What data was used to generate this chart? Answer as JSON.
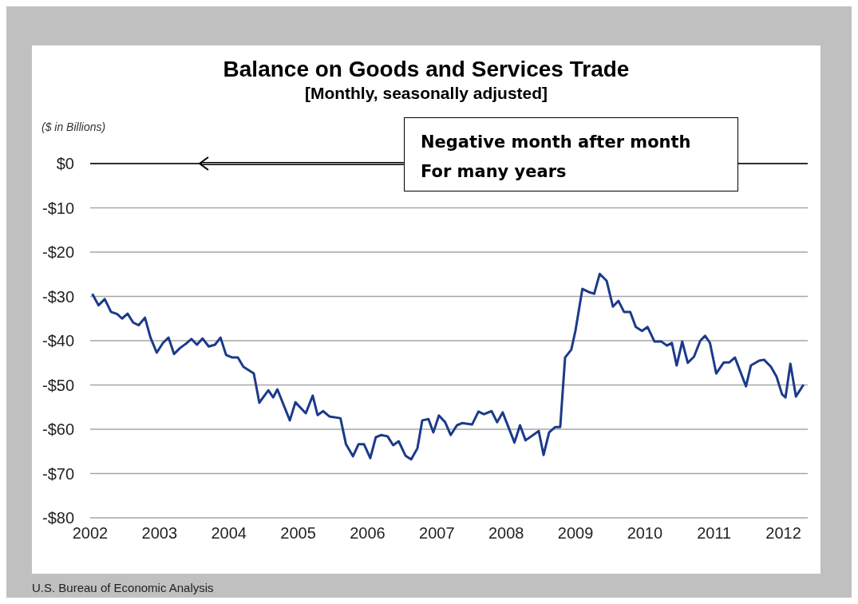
{
  "chart_data": {
    "type": "line",
    "title": "Balance on Goods and Services Trade",
    "subtitle": "[Monthly, seasonally adjusted]",
    "ylabel": "($ in Billions)",
    "annotations": [
      "Negative month after month\nFor many years",
      "U.S. Bureau of Economic Analysis"
    ],
    "x": [
      2002.03,
      2002.12,
      2002.21,
      2002.3,
      2002.39,
      2002.46,
      2002.54,
      2002.62,
      2002.7,
      2002.79,
      2002.87,
      2002.96,
      2003.05,
      2003.13,
      2003.21,
      2003.3,
      2003.38,
      2003.46,
      2003.54,
      2003.62,
      2003.71,
      2003.8,
      2003.88,
      2003.96,
      2004.05,
      2004.13,
      2004.21,
      2004.36,
      2004.44,
      2004.57,
      2004.64,
      2004.7,
      2004.88,
      2004.96,
      2005.11,
      2005.21,
      2005.28,
      2005.36,
      2005.45,
      2005.61,
      2005.69,
      2005.79,
      2005.87,
      2005.95,
      2006.04,
      2006.12,
      2006.2,
      2006.29,
      2006.37,
      2006.45,
      2006.55,
      2006.63,
      2006.72,
      2006.79,
      2006.88,
      2006.95,
      2007.03,
      2007.12,
      2007.2,
      2007.29,
      2007.37,
      2007.51,
      2007.6,
      2007.68,
      2007.79,
      2007.87,
      2007.95,
      2008.12,
      2008.2,
      2008.28,
      2008.47,
      2008.54,
      2008.62,
      2008.71,
      2008.78,
      2008.85,
      2008.94,
      2009.0,
      2009.1,
      2009.19,
      2009.27,
      2009.35,
      2009.45,
      2009.54,
      2009.62,
      2009.7,
      2009.79,
      2009.87,
      2009.96,
      2010.04,
      2010.14,
      2010.24,
      2010.32,
      2010.39,
      2010.46,
      2010.54,
      2010.62,
      2010.71,
      2010.8,
      2010.87,
      2010.94,
      2011.03,
      2011.14,
      2011.22,
      2011.3,
      2011.46,
      2011.53,
      2011.65,
      2011.72,
      2011.82,
      2011.9,
      2011.98,
      2012.03,
      2012.1,
      2012.18,
      2012.29
    ],
    "series": [
      {
        "color": "#1b3a8a",
        "values": [
          -29.4,
          -32,
          -30.6,
          -33.5,
          -34,
          -35,
          -33.9,
          -35.9,
          -36.5,
          -34.8,
          -39.3,
          -42.7,
          -40.5,
          -39.3,
          -43,
          -41.6,
          -40.7,
          -39.6,
          -40.9,
          -39.5,
          -41.3,
          -40.9,
          -39.3,
          -43.2,
          -43.8,
          -43.8,
          -45.9,
          -47.4,
          -54,
          -51.2,
          -52.8,
          -51,
          -58,
          -53.9,
          -56.4,
          -52.4,
          -56.8,
          -55.9,
          -57.1,
          -57.5,
          -63.4,
          -66.1,
          -63.4,
          -63.4,
          -66.5,
          -61.8,
          -61.3,
          -61.6,
          -63.6,
          -62.7,
          -66,
          -66.8,
          -64.3,
          -58,
          -57.7,
          -60.7,
          -56.9,
          -58.4,
          -61.3,
          -59.1,
          -58.6,
          -58.9,
          -56,
          -56.6,
          -55.9,
          -58.4,
          -56.2,
          -63,
          -59.1,
          -62.5,
          -60.4,
          -65.8,
          -60.7,
          -59.5,
          -59.5,
          -43.8,
          -42,
          -37.7,
          -28.3,
          -29,
          -29.4,
          -24.9,
          -26.5,
          -32.3,
          -31,
          -33.5,
          -33.5,
          -36.9,
          -37.8,
          -36.9,
          -40.2,
          -40.2,
          -41.1,
          -40.5,
          -45.6,
          -40.2,
          -45,
          -43.6,
          -40,
          -38.9,
          -40.5,
          -47.4,
          -44.9,
          -44.9,
          -43.8,
          -50.3,
          -45.6,
          -44.5,
          -44.3,
          -45.9,
          -48.1,
          -52.1,
          -52.8,
          -45.2,
          -52.6,
          -49.9
        ]
      }
    ],
    "xlim": [
      2002,
      2012.35
    ],
    "xticks": [
      2002,
      2003,
      2004,
      2005,
      2006,
      2007,
      2008,
      2009,
      2010,
      2011,
      2012
    ],
    "ylim": [
      -80,
      0
    ],
    "yticks": [
      {
        "value": -80,
        "label": "-$80"
      },
      {
        "value": -70,
        "label": "-$70"
      },
      {
        "value": -60,
        "label": "-$60"
      },
      {
        "value": -50,
        "label": "-$50"
      },
      {
        "value": -40,
        "label": "-$40"
      },
      {
        "value": -30,
        "label": "-$30"
      },
      {
        "value": -20,
        "label": "-$20"
      },
      {
        "value": -10,
        "label": "-$10"
      },
      {
        "value": 0,
        "label": "$0"
      }
    ],
    "ref_lines": [
      {
        "axis": "y",
        "value": 0,
        "color": "#000000"
      }
    ],
    "grid": "y",
    "legend": false,
    "marker": "none",
    "line_style": "solid"
  }
}
